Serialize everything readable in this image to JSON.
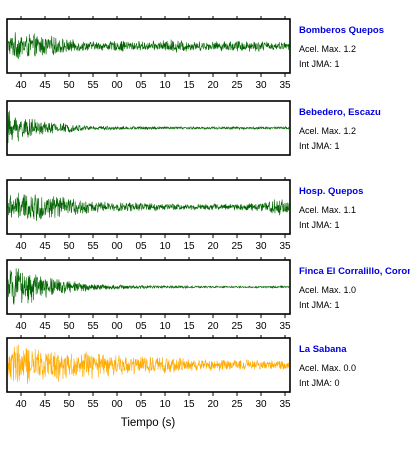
{
  "chart_data": [
    {
      "type": "line",
      "station": "Bomberos Quepos",
      "acel_label": "Acel. Max.",
      "acel_value": "1.2",
      "int_label": "Int JMA:",
      "int_value": "1",
      "color": "#006400",
      "x_ticks": [
        "40",
        "45",
        "50",
        "55",
        "00",
        "05",
        "10",
        "15",
        "20",
        "25",
        "30",
        "35"
      ],
      "amplitude_envelope": [
        0.45,
        0.62,
        0.55,
        0.5,
        0.45,
        0.4,
        0.3,
        0.25,
        0.22,
        0.2,
        0.2,
        0.22,
        0.26,
        0.22,
        0.2,
        0.2,
        0.24,
        0.3,
        0.28,
        0.22,
        0.2,
        0.2,
        0.22,
        0.24,
        0.26,
        0.25,
        0.22,
        0.2,
        0.18,
        0.16
      ]
    },
    {
      "type": "line",
      "station": "Bebedero, Escazu",
      "acel_label": "Acel. Max.",
      "acel_value": "1.2",
      "int_label": "Int JMA:",
      "int_value": "1",
      "color": "#006400",
      "x_ticks": [],
      "amplitude_envelope": [
        0.8,
        0.6,
        0.45,
        0.35,
        0.3,
        0.25,
        0.2,
        0.16,
        0.12,
        0.1,
        0.08,
        0.08,
        0.08,
        0.07,
        0.07,
        0.07,
        0.07,
        0.06,
        0.06,
        0.06,
        0.06,
        0.06,
        0.06,
        0.06,
        0.06,
        0.06,
        0.06,
        0.06,
        0.06,
        0.06
      ]
    },
    {
      "type": "line",
      "station": "Hosp. Quepos",
      "acel_label": "Acel. Max.",
      "acel_value": "1.1",
      "int_label": "Int JMA:",
      "int_value": "1",
      "color": "#006400",
      "x_ticks": [
        "40",
        "45",
        "50",
        "55",
        "00",
        "05",
        "10",
        "15",
        "20",
        "25",
        "30",
        "35"
      ],
      "amplitude_envelope": [
        0.55,
        0.6,
        0.62,
        0.6,
        0.55,
        0.5,
        0.42,
        0.36,
        0.3,
        0.26,
        0.22,
        0.2,
        0.2,
        0.2,
        0.2,
        0.18,
        0.16,
        0.15,
        0.14,
        0.14,
        0.14,
        0.14,
        0.14,
        0.15,
        0.16,
        0.18,
        0.2,
        0.3,
        0.45,
        0.25
      ]
    },
    {
      "type": "line",
      "station": "Finca El Corralillo, Coronado",
      "acel_label": "Acel. Max.",
      "acel_value": "1.0",
      "int_label": "Int JMA:",
      "int_value": "1",
      "color": "#006400",
      "x_ticks": [
        "40",
        "45",
        "50",
        "55",
        "00",
        "05",
        "10",
        "15",
        "20",
        "25",
        "30",
        "35"
      ],
      "amplitude_envelope": [
        0.75,
        0.8,
        0.7,
        0.6,
        0.48,
        0.4,
        0.3,
        0.24,
        0.18,
        0.14,
        0.12,
        0.1,
        0.09,
        0.08,
        0.08,
        0.07,
        0.07,
        0.06,
        0.06,
        0.05,
        0.05,
        0.05,
        0.04,
        0.04,
        0.04,
        0.04,
        0.04,
        0.04,
        0.04,
        0.04
      ]
    },
    {
      "type": "line",
      "station": "La Sabana",
      "acel_label": "Acel. Max.",
      "acel_value": "0.0",
      "int_label": "Int JMA:",
      "int_value": "0",
      "color": "#ffaa00",
      "x_ticks": [
        "40",
        "45",
        "50",
        "55",
        "00",
        "05",
        "10",
        "15",
        "20",
        "25",
        "30",
        "35"
      ],
      "amplitude_envelope": [
        0.85,
        0.9,
        0.85,
        0.75,
        0.7,
        0.72,
        0.65,
        0.6,
        0.62,
        0.55,
        0.5,
        0.48,
        0.45,
        0.42,
        0.4,
        0.38,
        0.36,
        0.34,
        0.32,
        0.3,
        0.28,
        0.27,
        0.26,
        0.25,
        0.24,
        0.24,
        0.23,
        0.22,
        0.22,
        0.22
      ]
    }
  ],
  "xlabel": "Tiempo (s)"
}
